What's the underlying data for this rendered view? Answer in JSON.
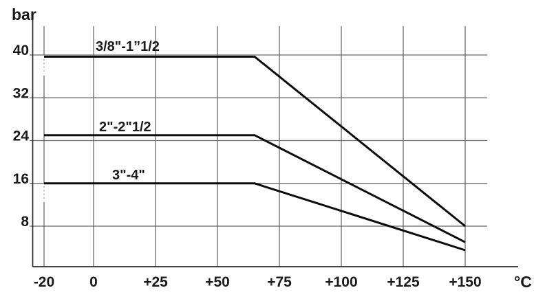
{
  "figure": {
    "background": "#ffffff",
    "text_color": "#1a1a1a"
  },
  "chart_data": {
    "type": "line",
    "title": "",
    "xlabel": "°C",
    "ylabel": "bar",
    "x_ticks": {
      "values": [
        -20,
        0,
        25,
        50,
        75,
        100,
        125,
        150
      ],
      "labels": [
        "-20",
        "0",
        "+25",
        "+50",
        "+75",
        "+100",
        "+125",
        "+150"
      ]
    },
    "y_ticks": {
      "values": [
        40,
        32,
        24,
        16,
        8
      ],
      "labels": [
        "40",
        "32",
        "24",
        "16",
        "8"
      ]
    },
    "xlim": [
      -20,
      150
    ],
    "ylim": [
      0.5,
      46
    ],
    "grid": true,
    "legend_position": "inline-labels-above-lines",
    "grid_color": "#6a6a6a",
    "axis_color": "#2b2b2b",
    "line_color": "#0c0c0c",
    "series": [
      {
        "name": "3/8\"-1”1/2",
        "pressure_rating_bar": 40,
        "points": [
          [
            -20,
            40
          ],
          [
            65,
            40
          ],
          [
            150,
            8
          ]
        ]
      },
      {
        "name": "2\"-2\"1/2",
        "pressure_rating_bar": 25,
        "points": [
          [
            -20,
            25
          ],
          [
            65,
            25
          ],
          [
            150,
            5
          ]
        ]
      },
      {
        "name": "3\"-4\"",
        "pressure_rating_bar": 16,
        "points": [
          [
            -20,
            16
          ],
          [
            65,
            16
          ],
          [
            150,
            3.5
          ]
        ]
      }
    ]
  }
}
